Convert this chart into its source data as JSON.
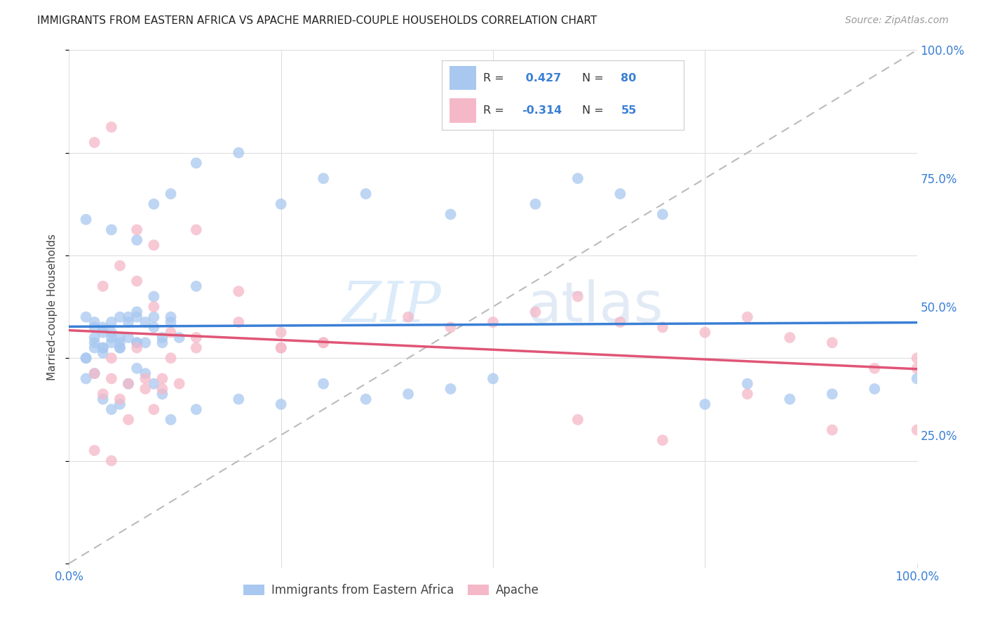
{
  "title": "IMMIGRANTS FROM EASTERN AFRICA VS APACHE MARRIED-COUPLE HOUSEHOLDS CORRELATION CHART",
  "source": "Source: ZipAtlas.com",
  "legend_label1": "Immigrants from Eastern Africa",
  "legend_label2": "Apache",
  "R1": 0.427,
  "N1": 80,
  "R2": -0.314,
  "N2": 55,
  "color_blue": "#a8c8f0",
  "color_pink": "#f5b8c8",
  "color_blue_line": "#3a7fd5",
  "color_pink_line": "#e05575",
  "color_text_blue": "#3a7fd5",
  "color_text_pink": "#e05575",
  "color_grid": "#dddddd",
  "color_diag": "#bbbbbb",
  "ylabel": "Married-couple Households",
  "blue_x": [
    2,
    5,
    10,
    12,
    15,
    8,
    20,
    3,
    4,
    6,
    9,
    11,
    13,
    2,
    3,
    5,
    7,
    8,
    10,
    4,
    6,
    3,
    5,
    2,
    4,
    6,
    8,
    10,
    12,
    15,
    3,
    4,
    5,
    6,
    7,
    8,
    9,
    10,
    11,
    12,
    2,
    3,
    4,
    5,
    6,
    7,
    8,
    2,
    3,
    4,
    5,
    6,
    7,
    8,
    9,
    10,
    11,
    12,
    15,
    20,
    25,
    30,
    35,
    40,
    45,
    50,
    55,
    60,
    65,
    70,
    75,
    80,
    85,
    90,
    95,
    100,
    25,
    30,
    35,
    45
  ],
  "blue_y": [
    67,
    65,
    70,
    72,
    78,
    63,
    80,
    47,
    45,
    42,
    43,
    44,
    44,
    48,
    46,
    47,
    47,
    48,
    52,
    46,
    48,
    44,
    45,
    40,
    42,
    44,
    43,
    48,
    47,
    54,
    43,
    42,
    44,
    43,
    48,
    49,
    47,
    46,
    43,
    48,
    40,
    42,
    41,
    43,
    42,
    44,
    43,
    36,
    37,
    32,
    30,
    31,
    35,
    38,
    37,
    35,
    33,
    28,
    30,
    32,
    31,
    35,
    32,
    33,
    34,
    36,
    70,
    75,
    72,
    68,
    31,
    35,
    32,
    33,
    34,
    36,
    70,
    75,
    72,
    68
  ],
  "pink_x": [
    3,
    5,
    8,
    10,
    15,
    20,
    25,
    30,
    40,
    50,
    60,
    70,
    80,
    90,
    100,
    4,
    6,
    8,
    10,
    12,
    15,
    20,
    25,
    30,
    3,
    5,
    7,
    10,
    5,
    8,
    12,
    15,
    4,
    6,
    9,
    11,
    25,
    45,
    55,
    65,
    75,
    85,
    95,
    100,
    3,
    5,
    7,
    9,
    11,
    13,
    60,
    70,
    80,
    90,
    100
  ],
  "pink_y": [
    82,
    85,
    65,
    62,
    65,
    53,
    45,
    43,
    48,
    47,
    52,
    46,
    48,
    43,
    40,
    54,
    58,
    55,
    50,
    45,
    44,
    47,
    42,
    43,
    22,
    20,
    28,
    30,
    40,
    42,
    40,
    42,
    33,
    32,
    36,
    34,
    42,
    46,
    49,
    47,
    45,
    44,
    38,
    38,
    37,
    36,
    35,
    34,
    36,
    35,
    28,
    24,
    33,
    26,
    26
  ]
}
